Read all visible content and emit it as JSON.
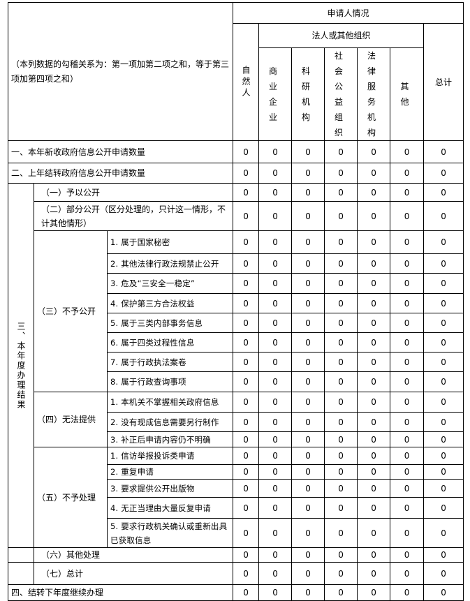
{
  "header": {
    "note": "（本列数据的勾稽关系为：第一项加第二项之和，等于第三项加第四项之和）",
    "applicant": "申请人情况",
    "natural_person": "自然人",
    "legal_group": "法人或其他组织",
    "org_columns": [
      "商业企业",
      "科研机构",
      "社会公益组织",
      "法律服务机构",
      "其他"
    ],
    "total": "总计"
  },
  "section1": {
    "label": "一、本年新收政府信息公开申请数量",
    "values": [
      0,
      0,
      0,
      0,
      0,
      0,
      0
    ]
  },
  "section2": {
    "label": "二、上年结转政府信息公开申请数量",
    "values": [
      0,
      0,
      0,
      0,
      0,
      0,
      0
    ]
  },
  "section3": {
    "label": "三、本年度办理结果",
    "items": [
      {
        "label": "（一）予以公开",
        "values": [
          0,
          0,
          0,
          0,
          0,
          0,
          0
        ]
      },
      {
        "label": "（二）部分公开（区分处理的，只计这一情形，不计其他情形）",
        "values": [
          0,
          0,
          0,
          0,
          0,
          0,
          0
        ]
      },
      {
        "label": "（三）不予公开",
        "sub": [
          {
            "label": "1. 属于国家秘密",
            "values": [
              0,
              0,
              0,
              0,
              0,
              0,
              0
            ]
          },
          {
            "label": "2. 其他法律行政法规禁止公开",
            "values": [
              0,
              0,
              0,
              0,
              0,
              0,
              0
            ]
          },
          {
            "label": "3. 危及“三安全一稳定”",
            "values": [
              0,
              0,
              0,
              0,
              0,
              0,
              0
            ]
          },
          {
            "label": "4. 保护第三方合法权益",
            "values": [
              0,
              0,
              0,
              0,
              0,
              0,
              0
            ]
          },
          {
            "label": "5. 属于三类内部事务信息",
            "values": [
              0,
              0,
              0,
              0,
              0,
              0,
              0
            ]
          },
          {
            "label": "6. 属于四类过程性信息",
            "values": [
              0,
              0,
              0,
              0,
              0,
              0,
              0
            ]
          },
          {
            "label": "7. 属于行政执法案卷",
            "values": [
              0,
              0,
              0,
              0,
              0,
              0,
              0
            ]
          },
          {
            "label": "8. 属于行政查询事项",
            "values": [
              0,
              0,
              0,
              0,
              0,
              0,
              0
            ]
          }
        ]
      },
      {
        "label": "（四）无法提供",
        "sub": [
          {
            "label": "1. 本机关不掌握相关政府信息",
            "values": [
              0,
              0,
              0,
              0,
              0,
              0,
              0
            ]
          },
          {
            "label": "2. 没有现成信息需要另行制作",
            "values": [
              0,
              0,
              0,
              0,
              0,
              0,
              0
            ]
          },
          {
            "label": "3. 补正后申请内容仍不明确",
            "values": [
              0,
              0,
              0,
              0,
              0,
              0,
              0
            ]
          }
        ]
      },
      {
        "label": "（五）不予处理",
        "sub": [
          {
            "label": "1. 信访举报投诉类申请",
            "values": [
              0,
              0,
              0,
              0,
              0,
              0,
              0
            ]
          },
          {
            "label": "2. 重复申请",
            "values": [
              0,
              0,
              0,
              0,
              0,
              0,
              0
            ]
          },
          {
            "label": "3. 要求提供公开出版物",
            "values": [
              0,
              0,
              0,
              0,
              0,
              0,
              0
            ]
          },
          {
            "label": "4. 无正当理由大量反复申请",
            "values": [
              0,
              0,
              0,
              0,
              0,
              0,
              0
            ]
          },
          {
            "label": "5. 要求行政机关确认或重新出具已获取信息",
            "values": [
              0,
              0,
              0,
              0,
              0,
              0,
              0
            ]
          }
        ]
      },
      {
        "label": "（六）其他处理",
        "values": [
          0,
          0,
          0,
          0,
          0,
          0,
          0
        ]
      },
      {
        "label": "（七）总计",
        "values": [
          0,
          0,
          0,
          0,
          0,
          0,
          0
        ]
      }
    ]
  },
  "section4": {
    "label": "四、结转下年度继续办理",
    "values": [
      0,
      0,
      0,
      0,
      0,
      0,
      0
    ]
  }
}
